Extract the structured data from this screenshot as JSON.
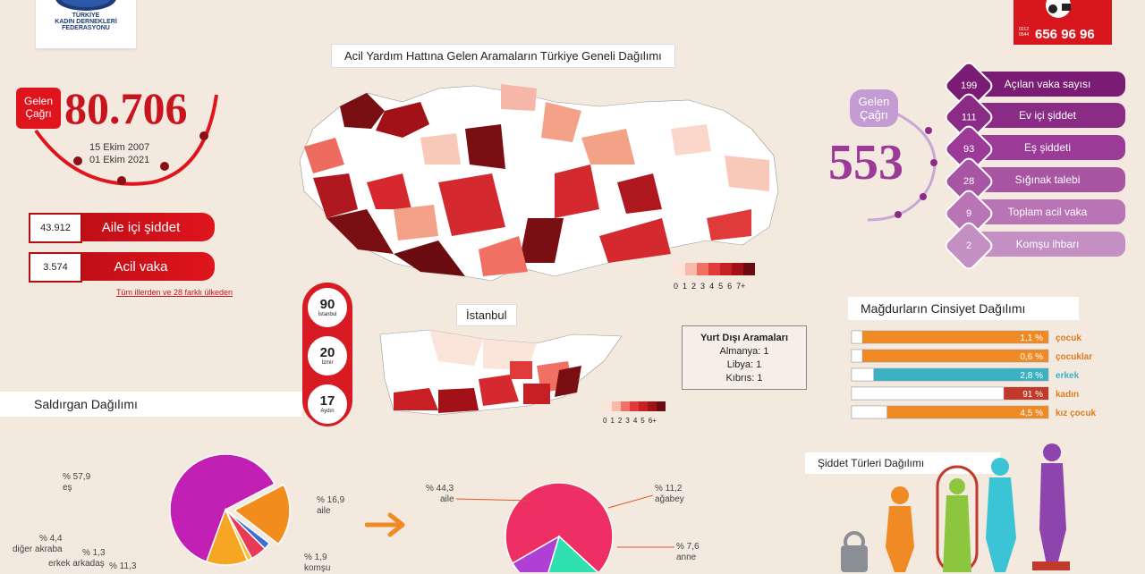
{
  "logo": {
    "line1": "TÜRKİYE",
    "line2": "KADIN DERNEKLERİ",
    "line3": "FEDERASYONU"
  },
  "hotline": {
    "small": "0212\n0544",
    "number": "656 96 96"
  },
  "main_title": "Acil Yardım Hattına Gelen Aramaların Türkiye Geneli Dağılımı",
  "left_counter": {
    "label_line1": "Gelen",
    "label_line2": "Çağrı",
    "value": "80.706",
    "date1": "15 Ekim 2007",
    "date2": "01 Ekim 2021"
  },
  "left_stats": [
    {
      "num": "43.912",
      "label": "Aile içi şiddet"
    },
    {
      "num": "3.574",
      "label": "Acil vaka"
    }
  ],
  "left_note": "Tüm illerden ve 28 farklı ülkeden",
  "right_counter": {
    "label_line1": "Gelen",
    "label_line2": "Çağrı",
    "value": "553"
  },
  "right_stats": [
    {
      "num": "199",
      "label": "Açılan vaka sayısı",
      "color": "#7a1c73"
    },
    {
      "num": "111",
      "label": "Ev içi şiddet",
      "color": "#8a2c86"
    },
    {
      "num": "93",
      "label": "Eş şiddeti",
      "color": "#9b3b97"
    },
    {
      "num": "28",
      "label": "Sığınak talebi",
      "color": "#a856a4"
    },
    {
      "num": "9",
      "label": "Toplam acil vaka",
      "color": "#b874b5"
    },
    {
      "num": "2",
      "label": "Komşu ihbarı",
      "color": "#c48fc2"
    }
  ],
  "map_legend": [
    "0",
    "1",
    "2",
    "3",
    "4",
    "5",
    "6",
    "7+"
  ],
  "istanbul_title": "İstanbul",
  "istanbul_legend": [
    "0",
    "1",
    "2",
    "3",
    "4",
    "5",
    "6+"
  ],
  "top_cities": [
    {
      "n": "90",
      "c": "İstanbul"
    },
    {
      "n": "20",
      "c": "İzmir"
    },
    {
      "n": "17",
      "c": "Aydın"
    }
  ],
  "abroad": {
    "title": "Yurt Dışı Aramaları",
    "lines": [
      "Almanya: 1",
      "Libya: 1",
      "Kıbrıs: 1"
    ]
  },
  "gender_title": "Mağdurların Cinsiyet Dağılımı",
  "violence_title": "Şiddet Türleri Dağılımı",
  "aggressor_title": "Saldırgan Dağılımı",
  "pie1_labels": [
    {
      "pct": "% 57,9",
      "name": "eş"
    },
    {
      "pct": "% 16,9",
      "name": "aile"
    },
    {
      "pct": "% 4,4",
      "name": "diğer akraba"
    },
    {
      "pct": "% 1,3",
      "name": "erkek arkadaş"
    },
    {
      "pct": "% 11,3",
      "name": ""
    },
    {
      "pct": "% 1,9",
      "name": "komşu"
    }
  ],
  "pie2_labels": [
    {
      "pct": "% 44,3",
      "name": "aile"
    },
    {
      "pct": "% 11,2",
      "name": "ağabey"
    },
    {
      "pct": "% 7,6",
      "name": "anne"
    }
  ],
  "colors": {
    "red": "#d81a22",
    "purple": "#8a2c86",
    "orange": "#f08a24",
    "teal": "#3bb2c4"
  },
  "chart_data": [
    {
      "type": "bar",
      "title": "Mağdurların Cinsiyet Dağılımı",
      "categories": [
        "çocuk",
        "çocuklar",
        "erkek",
        "kadın",
        "kız çocuk"
      ],
      "values": [
        1.1,
        0.6,
        2.8,
        91,
        4.5
      ],
      "value_labels": [
        "1,1 %",
        "0,6 %",
        "2,8 %",
        "91 %",
        "4,5 %"
      ],
      "ylim": [
        0,
        100
      ]
    },
    {
      "type": "pie",
      "title": "Saldırgan Dağılımı",
      "categories": [
        "eş",
        "aile",
        "komşu",
        "diğer akraba",
        "erkek arkadaş",
        ""
      ],
      "values": [
        57.9,
        16.9,
        1.9,
        4.4,
        1.3,
        11.3
      ],
      "colors": [
        "#c21fb4",
        "#f28c1c",
        "#3a6fd8",
        "#e83a55",
        "#f5c33a",
        "#f7a623"
      ]
    },
    {
      "type": "pie",
      "title": "",
      "categories": [
        "aile",
        "ağabey",
        "anne"
      ],
      "values": [
        44.3,
        11.2,
        7.6
      ],
      "colors": [
        "#ee2f63",
        "#2fe0b0",
        "#b03fd6"
      ]
    }
  ]
}
